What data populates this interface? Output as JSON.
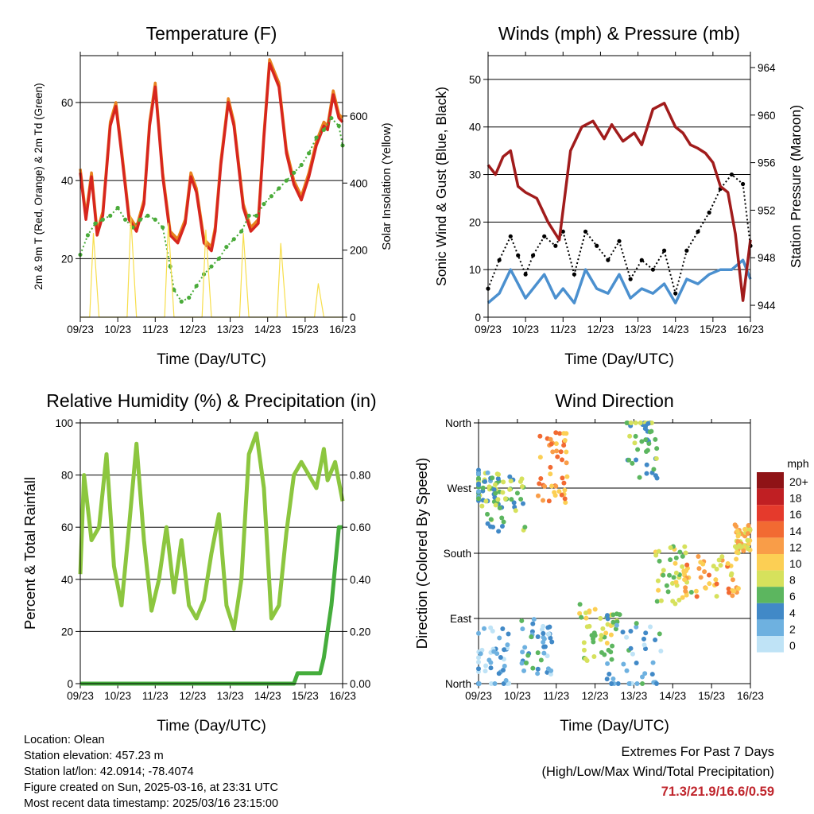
{
  "charts": {
    "temperature": {
      "title": "Temperature (F)",
      "xlabel": "Time (Day/UTC)",
      "ylabel_left": "2m & 9m T (Red, Orange) & 2m Td (Green)",
      "ylabel_right": "Solar Insolation (Yellow)"
    },
    "winds": {
      "title": "Winds (mph) & Pressure (mb)",
      "xlabel": "Time (Day/UTC)",
      "ylabel_left": "Sonic Wind & Gust (Blue, Black)",
      "ylabel_right": "Station Pressure (Maroon)"
    },
    "humidity": {
      "title": "Relative Humidity (%) & Precipitation (in)",
      "xlabel": "Time (Day/UTC)",
      "ylabel_left": "Percent & Total Rainfall"
    },
    "direction": {
      "title": "Wind Direction",
      "xlabel": "Time (Day/UTC)",
      "ylabel_left": "Direction (Colored By Speed)",
      "legend_title": "mph"
    }
  },
  "info": {
    "location": "Location: Olean",
    "elevation": "Station elevation: 457.23 m",
    "latlon": "Station lat/lon: 42.0914; -78.4074",
    "created": "Figure created on Sun, 2025-03-16, at 23:31 UTC",
    "recent": "Most recent data timestamp: 2025/03/16 23:15:00",
    "extremes_title": "Extremes For Past 7 Days",
    "extremes_sub": "(High/Low/Max Wind/Total Precipitation)",
    "extremes_values": "71.3/21.9/16.6/0.59"
  },
  "chart_data": [
    {
      "id": "temperature",
      "type": "line",
      "x_ticks": [
        "09/23",
        "10/23",
        "11/23",
        "12/23",
        "13/23",
        "14/23",
        "15/23",
        "16/23"
      ],
      "xlim": [
        0,
        7
      ],
      "ylim_left": [
        5,
        72
      ],
      "y_ticks_left": [
        20,
        40,
        60
      ],
      "ylim_right": [
        0,
        780
      ],
      "y_ticks_right": [
        0,
        200,
        400,
        600
      ],
      "series": [
        {
          "color": "#e8821e",
          "axis": "left",
          "x": [
            0,
            0.15,
            0.3,
            0.45,
            0.6,
            0.8,
            0.95,
            1.1,
            1.3,
            1.5,
            1.7,
            1.85,
            2.0,
            2.2,
            2.4,
            2.6,
            2.8,
            2.95,
            3.1,
            3.3,
            3.5,
            3.6,
            3.75,
            3.95,
            4.1,
            4.35,
            4.55,
            4.75,
            4.9,
            5.05,
            5.3,
            5.5,
            5.7,
            5.9,
            6.1,
            6.3,
            6.5,
            6.6,
            6.75,
            6.9,
            7.0
          ],
          "y": [
            43,
            31,
            42,
            27,
            32,
            55,
            60,
            48,
            31,
            28,
            35,
            55,
            65,
            42,
            27,
            25,
            30,
            42,
            38,
            25,
            23,
            28,
            45,
            61,
            55,
            34,
            28,
            30,
            52,
            71,
            65,
            48,
            40,
            36,
            42,
            50,
            55,
            54,
            63,
            57,
            56
          ]
        },
        {
          "color": "#d7261e",
          "axis": "left",
          "x": [
            0,
            0.15,
            0.3,
            0.45,
            0.6,
            0.8,
            0.95,
            1.1,
            1.3,
            1.5,
            1.7,
            1.85,
            2.0,
            2.2,
            2.4,
            2.6,
            2.8,
            2.95,
            3.1,
            3.3,
            3.5,
            3.6,
            3.75,
            3.95,
            4.1,
            4.35,
            4.55,
            4.75,
            4.9,
            5.05,
            5.3,
            5.5,
            5.7,
            5.9,
            6.1,
            6.3,
            6.5,
            6.6,
            6.75,
            6.9,
            7.0
          ],
          "y": [
            42,
            30,
            41,
            26,
            31,
            54,
            59,
            47,
            30,
            27,
            34,
            54,
            64,
            41,
            26,
            24,
            29,
            41,
            37,
            24,
            22,
            27,
            44,
            60,
            54,
            33,
            27,
            29,
            51,
            70,
            64,
            47,
            39,
            35,
            41,
            49,
            54,
            53,
            62,
            56,
            55
          ]
        },
        {
          "color": "#4aab3a",
          "axis": "left",
          "style": "dots",
          "x": [
            0,
            0.2,
            0.4,
            0.6,
            0.8,
            1.0,
            1.2,
            1.4,
            1.6,
            1.8,
            2.0,
            2.2,
            2.4,
            2.5,
            2.7,
            2.9,
            3.1,
            3.3,
            3.5,
            3.7,
            3.9,
            4.1,
            4.3,
            4.5,
            4.7,
            4.9,
            5.1,
            5.3,
            5.5,
            5.7,
            5.9,
            6.1,
            6.3,
            6.5,
            6.7,
            6.9,
            7.0
          ],
          "y": [
            21,
            26,
            29,
            30,
            31,
            33,
            30,
            28,
            30,
            31,
            30,
            28,
            18,
            12,
            9,
            10,
            13,
            16,
            18,
            20,
            23,
            25,
            27,
            31,
            31,
            34,
            36,
            38,
            40,
            42,
            44,
            47,
            51,
            53,
            56,
            54,
            49
          ]
        },
        {
          "color": "#f7de4b",
          "axis": "right",
          "style": "thin",
          "x": [
            0,
            0.15,
            0.25,
            0.35,
            0.5,
            0.7,
            1.0,
            1.15,
            1.25,
            1.35,
            1.5,
            1.7,
            2.0,
            2.15,
            2.25,
            2.35,
            2.5,
            2.7,
            3.0,
            3.15,
            3.25,
            3.35,
            3.5,
            3.7,
            4.0,
            4.15,
            4.25,
            4.35,
            4.5,
            4.7,
            5.0,
            5.15,
            5.25,
            5.35,
            5.5,
            5.7,
            6.0,
            6.15,
            6.25,
            6.35,
            6.5,
            6.7,
            7.0
          ],
          "y": [
            0,
            0,
            0,
            250,
            0,
            0,
            0,
            0,
            0,
            300,
            0,
            0,
            0,
            0,
            0,
            280,
            0,
            0,
            0,
            0,
            0,
            260,
            0,
            0,
            0,
            0,
            0,
            250,
            0,
            0,
            0,
            0,
            0,
            220,
            0,
            0,
            0,
            0,
            0,
            100,
            0,
            0,
            0
          ]
        }
      ]
    },
    {
      "id": "winds",
      "type": "line",
      "x_ticks": [
        "09/23",
        "10/23",
        "11/23",
        "12/23",
        "13/23",
        "14/23",
        "15/23",
        "16/23"
      ],
      "xlim": [
        0,
        7
      ],
      "ylim_left": [
        0,
        55
      ],
      "y_ticks_left": [
        0,
        10,
        20,
        30,
        40,
        50
      ],
      "ylim_right": [
        943,
        965
      ],
      "y_ticks_right": [
        944,
        948,
        952,
        956,
        960,
        964
      ],
      "series": [
        {
          "color": "#4b90cf",
          "axis": "left",
          "x": [
            0,
            0.3,
            0.6,
            0.8,
            1.0,
            1.2,
            1.5,
            1.8,
            2.0,
            2.3,
            2.6,
            2.9,
            3.2,
            3.5,
            3.8,
            4.1,
            4.4,
            4.7,
            5.0,
            5.3,
            5.6,
            5.9,
            6.2,
            6.5,
            6.8,
            7.0
          ],
          "y": [
            3,
            5,
            10,
            7,
            4,
            6,
            9,
            4,
            6,
            3,
            10,
            6,
            5,
            9,
            4,
            6,
            5,
            7,
            3,
            8,
            7,
            9,
            10,
            10,
            12,
            8
          ]
        },
        {
          "color": "#000000",
          "axis": "left",
          "style": "dots",
          "x": [
            0,
            0.3,
            0.6,
            0.8,
            1.0,
            1.2,
            1.5,
            1.8,
            2.0,
            2.3,
            2.6,
            2.9,
            3.2,
            3.5,
            3.8,
            4.1,
            4.4,
            4.7,
            5.0,
            5.3,
            5.6,
            5.9,
            6.2,
            6.5,
            6.8,
            7.0
          ],
          "y": [
            6,
            12,
            17,
            13,
            9,
            13,
            17,
            15,
            18,
            9,
            18,
            15,
            12,
            16,
            8,
            12,
            10,
            14,
            5,
            14,
            18,
            22,
            27,
            30,
            28,
            15
          ]
        },
        {
          "color": "#a11c1c",
          "axis": "right",
          "x": [
            0,
            0.2,
            0.4,
            0.6,
            0.8,
            1.0,
            1.3,
            1.6,
            1.9,
            2.2,
            2.5,
            2.8,
            3.1,
            3.3,
            3.6,
            3.9,
            4.1,
            4.4,
            4.7,
            5.0,
            5.2,
            5.4,
            5.6,
            5.8,
            6.0,
            6.2,
            6.4,
            6.6,
            6.8,
            7.0
          ],
          "y": [
            955.8,
            955,
            956.5,
            957,
            954,
            953.5,
            953,
            951,
            949.5,
            957,
            959,
            959.5,
            958,
            959.2,
            957.8,
            958.5,
            957.5,
            960.5,
            961,
            959,
            958.5,
            957.5,
            957.2,
            956.8,
            956,
            954,
            953.5,
            950,
            944.4,
            949.5
          ]
        }
      ]
    },
    {
      "id": "humidity",
      "type": "line",
      "x_ticks": [
        "09/23",
        "10/23",
        "11/23",
        "12/23",
        "13/23",
        "14/23",
        "15/23",
        "16/23"
      ],
      "xlim": [
        0,
        7
      ],
      "ylim_left": [
        0,
        100
      ],
      "y_ticks_left": [
        0,
        20,
        40,
        60,
        80,
        100
      ],
      "ylim_right": [
        0,
        1
      ],
      "y_ticks_right": [
        "0.00",
        "0.20",
        "0.40",
        "0.60",
        "0.80"
      ],
      "series": [
        {
          "color": "#8cc63f",
          "axis": "left",
          "x": [
            0,
            0.1,
            0.3,
            0.5,
            0.7,
            0.9,
            1.1,
            1.3,
            1.5,
            1.7,
            1.9,
            2.1,
            2.3,
            2.5,
            2.7,
            2.9,
            3.1,
            3.3,
            3.5,
            3.7,
            3.9,
            4.1,
            4.3,
            4.5,
            4.7,
            4.9,
            5.1,
            5.3,
            5.5,
            5.7,
            5.9,
            6.1,
            6.3,
            6.5,
            6.6,
            6.8,
            7.0
          ],
          "y": [
            42,
            80,
            55,
            60,
            88,
            45,
            30,
            60,
            92,
            55,
            28,
            40,
            60,
            35,
            55,
            30,
            25,
            32,
            50,
            65,
            30,
            21,
            40,
            88,
            96,
            75,
            25,
            30,
            58,
            80,
            85,
            80,
            75,
            90,
            78,
            85,
            70
          ]
        },
        {
          "color": "#45ad3c",
          "axis": "right",
          "x": [
            0,
            1,
            2,
            3,
            4,
            5,
            5.7,
            5.8,
            6.0,
            6.2,
            6.4,
            6.5,
            6.6,
            6.7,
            6.8,
            6.9,
            7.0
          ],
          "y": [
            0,
            0,
            0,
            0,
            0,
            0,
            0,
            0.04,
            0.04,
            0.04,
            0.04,
            0.1,
            0.2,
            0.3,
            0.45,
            0.6,
            0.6
          ]
        }
      ]
    },
    {
      "id": "direction",
      "type": "scatter",
      "x_ticks": [
        "09/23",
        "10/23",
        "11/23",
        "12/23",
        "13/23",
        "14/23",
        "15/23",
        "16/23"
      ],
      "xlim": [
        0,
        7
      ],
      "y_ticks_left": [
        "North",
        "East",
        "South",
        "West",
        "North"
      ],
      "ylim_left": [
        0,
        360
      ],
      "legend_labels": [
        "20+",
        "18",
        "16",
        "14",
        "12",
        "10",
        "8",
        "6",
        "4",
        "2",
        "0"
      ],
      "legend_colors": [
        "#8f1316",
        "#c01f23",
        "#e53a2c",
        "#f26a32",
        "#f99d48",
        "#fccf54",
        "#d6e15c",
        "#5cb65f",
        "#4189c7",
        "#6eb1e0",
        "#bfe3f6"
      ]
    }
  ]
}
